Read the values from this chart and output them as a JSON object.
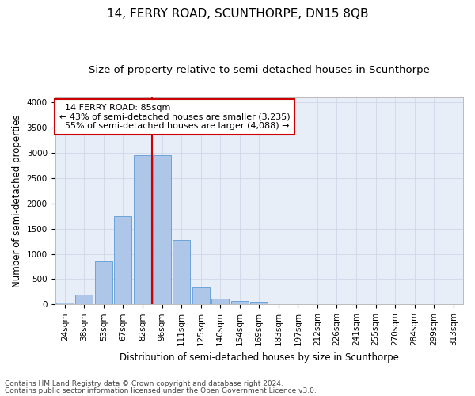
{
  "title": "14, FERRY ROAD, SCUNTHORPE, DN15 8QB",
  "subtitle": "Size of property relative to semi-detached houses in Scunthorpe",
  "xlabel": "Distribution of semi-detached houses by size in Scunthorpe",
  "ylabel": "Number of semi-detached properties",
  "categories": [
    "24sqm",
    "38sqm",
    "53sqm",
    "67sqm",
    "82sqm",
    "96sqm",
    "111sqm",
    "125sqm",
    "140sqm",
    "154sqm",
    "169sqm",
    "183sqm",
    "197sqm",
    "212sqm",
    "226sqm",
    "241sqm",
    "255sqm",
    "270sqm",
    "284sqm",
    "299sqm",
    "313sqm"
  ],
  "values": [
    30,
    195,
    850,
    1750,
    2950,
    2950,
    1280,
    330,
    110,
    60,
    45,
    0,
    0,
    0,
    0,
    0,
    0,
    0,
    0,
    0,
    0
  ],
  "bar_color": "#aec6e8",
  "bar_edge_color": "#5b9bd5",
  "property_label": "14 FERRY ROAD: 85sqm",
  "pct_smaller": 43,
  "pct_larger": 55,
  "n_smaller": "3,235",
  "n_larger": "4,088",
  "annotation_box_color": "#ffffff",
  "annotation_box_edge_color": "#cc0000",
  "red_line_color": "#cc0000",
  "red_line_index": 4.5,
  "grid_color": "#d0d8e8",
  "bg_color": "#e8eef8",
  "ylim": [
    0,
    4100
  ],
  "yticks": [
    0,
    500,
    1000,
    1500,
    2000,
    2500,
    3000,
    3500,
    4000
  ],
  "footer_line1": "Contains HM Land Registry data © Crown copyright and database right 2024.",
  "footer_line2": "Contains public sector information licensed under the Open Government Licence v3.0.",
  "title_fontsize": 11,
  "subtitle_fontsize": 9.5,
  "axis_label_fontsize": 8.5,
  "tick_fontsize": 7.5,
  "annotation_fontsize": 8,
  "footer_fontsize": 6.5
}
